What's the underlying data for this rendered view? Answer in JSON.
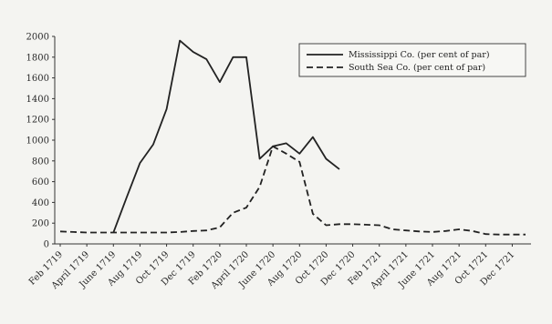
{
  "chart_data": {
    "type": "line",
    "title": "",
    "xlabel": "",
    "ylabel": "",
    "ylim": [
      0,
      2000
    ],
    "yticks": [
      0,
      200,
      400,
      600,
      800,
      1000,
      1200,
      1400,
      1600,
      1800,
      2000
    ],
    "x": [
      "Feb 1719",
      "Mar 1719",
      "April 1719",
      "May 1719",
      "June 1719",
      "July 1719",
      "Aug 1719",
      "Sept 1719",
      "Oct 1719",
      "Nov 1719",
      "Dec 1719",
      "Jan 1720",
      "Feb 1720",
      "Mar 1720",
      "April 1720",
      "May 1720",
      "June 1720",
      "July 1720",
      "Aug 1720",
      "Sept 1720",
      "Oct 1720",
      "Nov 1720",
      "Dec 1720",
      "Jan 1721",
      "Feb 1721",
      "Mar 1721",
      "April 1721",
      "May 1721",
      "June 1721",
      "July 1721",
      "Aug 1721",
      "Sept 1721",
      "Oct 1721",
      "Nov 1721",
      "Dec 1721",
      "Jan 1722"
    ],
    "tick_labels": [
      "Feb 1719",
      "April 1719",
      "June 1719",
      "Aug 1719",
      "Oct 1719",
      "Dec 1719",
      "Feb 1720",
      "April 1720",
      "June 1720",
      "Aug 1720",
      "Oct 1720",
      "Dec 1720",
      "Feb 1721",
      "April 1721",
      "June 1721",
      "Aug 1721",
      "Oct 1721",
      "Dec 1721"
    ],
    "grid": false,
    "legend_position": "top-right",
    "series": [
      {
        "name": "Mississippi Co. (per cent of par)",
        "style": "solid",
        "values": [
          null,
          null,
          null,
          null,
          110,
          450,
          780,
          960,
          1300,
          1960,
          1850,
          1780,
          1560,
          1800,
          1800,
          820,
          940,
          970,
          870,
          1030,
          820,
          720,
          null,
          null,
          null,
          null,
          null,
          null,
          null,
          null,
          null,
          null,
          null,
          null,
          null,
          null
        ]
      },
      {
        "name": "South Sea Co. (per cent of par)",
        "style": "dashed",
        "values": [
          120,
          115,
          110,
          110,
          110,
          110,
          110,
          110,
          110,
          115,
          125,
          130,
          160,
          300,
          350,
          550,
          940,
          870,
          790,
          290,
          180,
          190,
          190,
          185,
          180,
          140,
          130,
          120,
          115,
          125,
          140,
          125,
          95,
          90,
          90,
          90
        ]
      }
    ]
  },
  "colors": {
    "line": "#222222",
    "background": "#f4f4f1"
  }
}
